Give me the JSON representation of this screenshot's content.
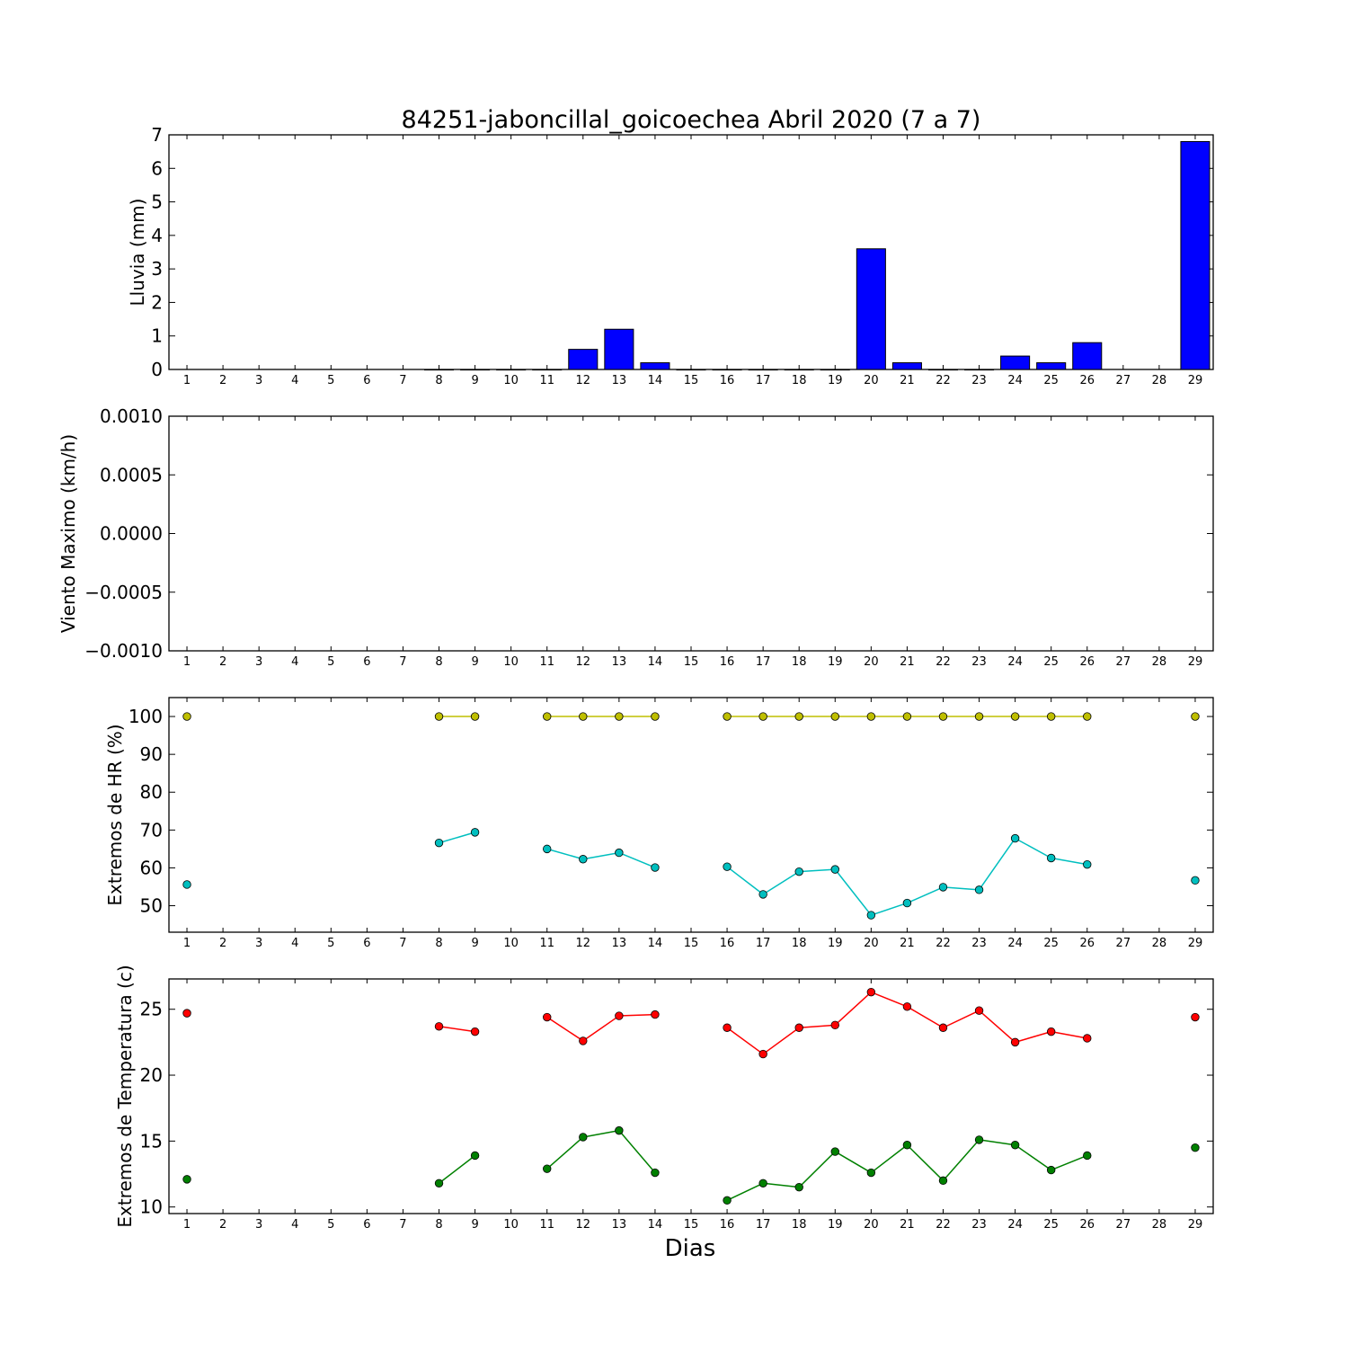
{
  "title": "84251-jaboncillal_goicoechea Abril 2020  (7 a 7)",
  "xlabel": "Dias",
  "day_ticks": [
    "1",
    "2",
    "3",
    "4",
    "5",
    "6",
    "7",
    "8",
    "9",
    "10",
    "11",
    "12",
    "13",
    "14",
    "15",
    "16",
    "17",
    "18",
    "19",
    "20",
    "21",
    "22",
    "23",
    "24",
    "25",
    "26",
    "27",
    "28",
    "29"
  ],
  "colors": {
    "rain": "#0000ff",
    "hr_max": "#bfbf00",
    "hr_min": "#00bfbf",
    "t_max": "#ff0000",
    "t_min": "#008000"
  },
  "chart_data": [
    {
      "type": "bar",
      "ylabel": "Lluvia (mm)",
      "ylim": [
        0,
        7
      ],
      "yticks": [
        "0",
        "1",
        "2",
        "3",
        "4",
        "5",
        "6",
        "7"
      ],
      "x": [
        8,
        9,
        10,
        11,
        12,
        13,
        14,
        15,
        16,
        17,
        18,
        19,
        20,
        21,
        22,
        23,
        24,
        25,
        26,
        29
      ],
      "values": [
        0,
        0,
        0,
        0,
        0.6,
        1.2,
        0.2,
        0,
        0,
        0,
        0,
        0,
        3.6,
        0.2,
        0,
        0,
        0.4,
        0.2,
        0.8,
        6.8
      ]
    },
    {
      "type": "line",
      "ylabel": "Viento Maximo (km/h)",
      "ylim": [
        -0.001,
        0.001
      ],
      "yticks": [
        "−0.0010",
        "−0.0005",
        "0.0000",
        "0.0005",
        "0.0010"
      ],
      "series": []
    },
    {
      "type": "line",
      "ylabel": "Extremos de HR (%)",
      "ylim": [
        43,
        105
      ],
      "yticks": [
        "50",
        "60",
        "70",
        "80",
        "90",
        "100"
      ],
      "series": [
        {
          "color": "#bfbf00",
          "x": [
            1,
            8,
            9,
            11,
            12,
            13,
            14,
            16,
            17,
            18,
            19,
            20,
            21,
            22,
            23,
            24,
            25,
            26,
            29
          ],
          "y": [
            100,
            100,
            100,
            100,
            100,
            100,
            100,
            100,
            100,
            100,
            100,
            100,
            100,
            100,
            100,
            100,
            100,
            100,
            100
          ]
        },
        {
          "color": "#00bfbf",
          "x": [
            1,
            8,
            9,
            11,
            12,
            13,
            14,
            16,
            17,
            18,
            19,
            20,
            21,
            22,
            23,
            24,
            25,
            26,
            29
          ],
          "y": [
            55.6,
            66.6,
            69.4,
            65,
            62.3,
            64,
            60.1,
            60.3,
            53,
            59,
            59.6,
            47.5,
            50.7,
            54.9,
            54.2,
            67.8,
            62.6,
            60.9,
            56.7
          ]
        }
      ]
    },
    {
      "type": "line",
      "ylabel": "Extremos de Temperatura (c)",
      "ylim": [
        9.5,
        27.3
      ],
      "yticks": [
        "10",
        "15",
        "20",
        "25"
      ],
      "series": [
        {
          "color": "#ff0000",
          "x": [
            1,
            8,
            9,
            11,
            12,
            13,
            14,
            16,
            17,
            18,
            19,
            20,
            21,
            22,
            23,
            24,
            25,
            26,
            29
          ],
          "y": [
            24.7,
            23.7,
            23.3,
            24.4,
            22.6,
            24.5,
            24.6,
            23.6,
            21.6,
            23.6,
            23.8,
            26.3,
            25.2,
            23.6,
            24.9,
            22.5,
            23.3,
            22.8,
            24.4
          ]
        },
        {
          "color": "#008000",
          "x": [
            1,
            8,
            9,
            11,
            12,
            13,
            14,
            16,
            17,
            18,
            19,
            20,
            21,
            22,
            23,
            24,
            25,
            26,
            29
          ],
          "y": [
            12.1,
            11.8,
            13.9,
            12.9,
            15.3,
            15.8,
            12.6,
            10.5,
            11.8,
            11.5,
            14.2,
            12.6,
            14.7,
            12,
            15.1,
            14.7,
            12.8,
            13.9,
            14.5
          ]
        }
      ]
    }
  ]
}
